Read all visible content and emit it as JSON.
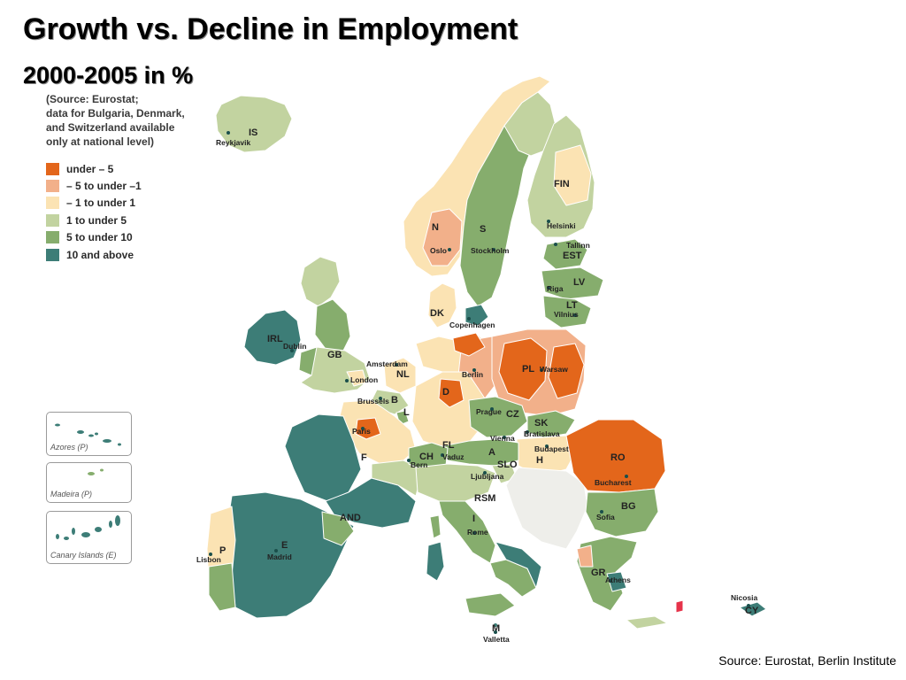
{
  "title": "Growth vs. Decline in Employment",
  "subtitle": "2000-2005 in %",
  "source_note": [
    "(Source: Eurostat;",
    "data for Bulgaria, Denmark,",
    "and Switzerland available",
    "only at national level)"
  ],
  "legend": [
    {
      "label": "under – 5",
      "color": "#e3661b"
    },
    {
      "label": "– 5 to under –1",
      "color": "#f2b08a"
    },
    {
      "label": "– 1 to under 1",
      "color": "#fbe3b3"
    },
    {
      "label": "1 to under 5",
      "color": "#c2d3a0"
    },
    {
      "label": "5 to under 10",
      "color": "#86ad6d"
    },
    {
      "label": "10 and above",
      "color": "#3d7d77"
    }
  ],
  "insets": [
    {
      "label": "Azores (P)"
    },
    {
      "label": "Madeira (P)"
    },
    {
      "label": "Canary Islands (E)"
    }
  ],
  "country_codes": [
    "IS",
    "N",
    "S",
    "FIN",
    "EST",
    "LV",
    "LT",
    "DK",
    "IRL",
    "GB",
    "NL",
    "B",
    "L",
    "D",
    "PL",
    "CZ",
    "SK",
    "H",
    "RO",
    "BG",
    "A",
    "SLO",
    "CH",
    "FL",
    "F",
    "AND",
    "E",
    "P",
    "I",
    "RSM",
    "GR",
    "M",
    "CY"
  ],
  "cities": [
    "Reykjavik",
    "Oslo",
    "Stockholm",
    "Helsinki",
    "Tallinn",
    "Riga",
    "Vilnius",
    "Copenhagen",
    "Dublin",
    "London",
    "Amsterdam",
    "Brussels",
    "Berlin",
    "Warsaw",
    "Paris",
    "Prague",
    "Bratislava",
    "Vienna",
    "Budapest",
    "Vaduz",
    "Bern",
    "Ljubljana",
    "Bucharest",
    "Sofia",
    "Rome",
    "Lisbon",
    "Madrid",
    "Athens",
    "Valletta",
    "Nicosia"
  ],
  "footer": "Source: Eurostat, Berlin Institute"
}
